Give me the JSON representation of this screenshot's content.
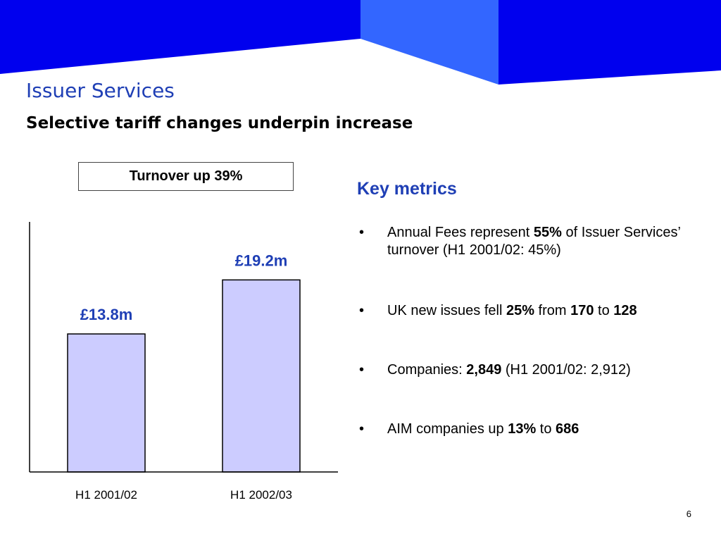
{
  "slide": {
    "title": "Issuer Services",
    "subtitle": "Selective tariff changes underpin increase",
    "callout": "Turnover up 39%",
    "page_number": "6",
    "colors": {
      "banner_dark": "#0000ee",
      "banner_light": "#3366ff",
      "title": "#1f3fb5",
      "bar_fill": "#ccccff"
    }
  },
  "chart_data": {
    "type": "bar",
    "categories": [
      "H1 2001/02",
      "H1 2002/03"
    ],
    "values": [
      13.8,
      19.2
    ],
    "data_labels": [
      "£13.8m",
      "£19.2m"
    ],
    "title": "",
    "xlabel": "",
    "ylabel": "",
    "ylim": [
      0,
      25
    ],
    "grid": false
  },
  "key_metrics": {
    "title": "Key metrics",
    "items": [
      {
        "bullet": "•",
        "parts": [
          {
            "t": "Annual Fees represent "
          },
          {
            "t": "55%",
            "b": true
          },
          {
            "t": " of Issuer Services’ turnover (H1 2001/02: 45%)"
          }
        ]
      },
      {
        "bullet": "•",
        "parts": [
          {
            "t": "UK new issues fell "
          },
          {
            "t": "25%",
            "b": true
          },
          {
            "t": " from "
          },
          {
            "t": "170",
            "b": true
          },
          {
            "t": " to "
          },
          {
            "t": "128",
            "b": true
          }
        ]
      },
      {
        "bullet": "•",
        "parts": [
          {
            "t": "Companies: "
          },
          {
            "t": "2,849",
            "b": true
          },
          {
            "t": " (H1 2001/02: 2,912)"
          }
        ]
      },
      {
        "bullet": "•",
        "parts": [
          {
            "t": "AIM companies up "
          },
          {
            "t": "13%",
            "b": true
          },
          {
            "t": " to "
          },
          {
            "t": "686",
            "b": true
          }
        ]
      }
    ]
  }
}
